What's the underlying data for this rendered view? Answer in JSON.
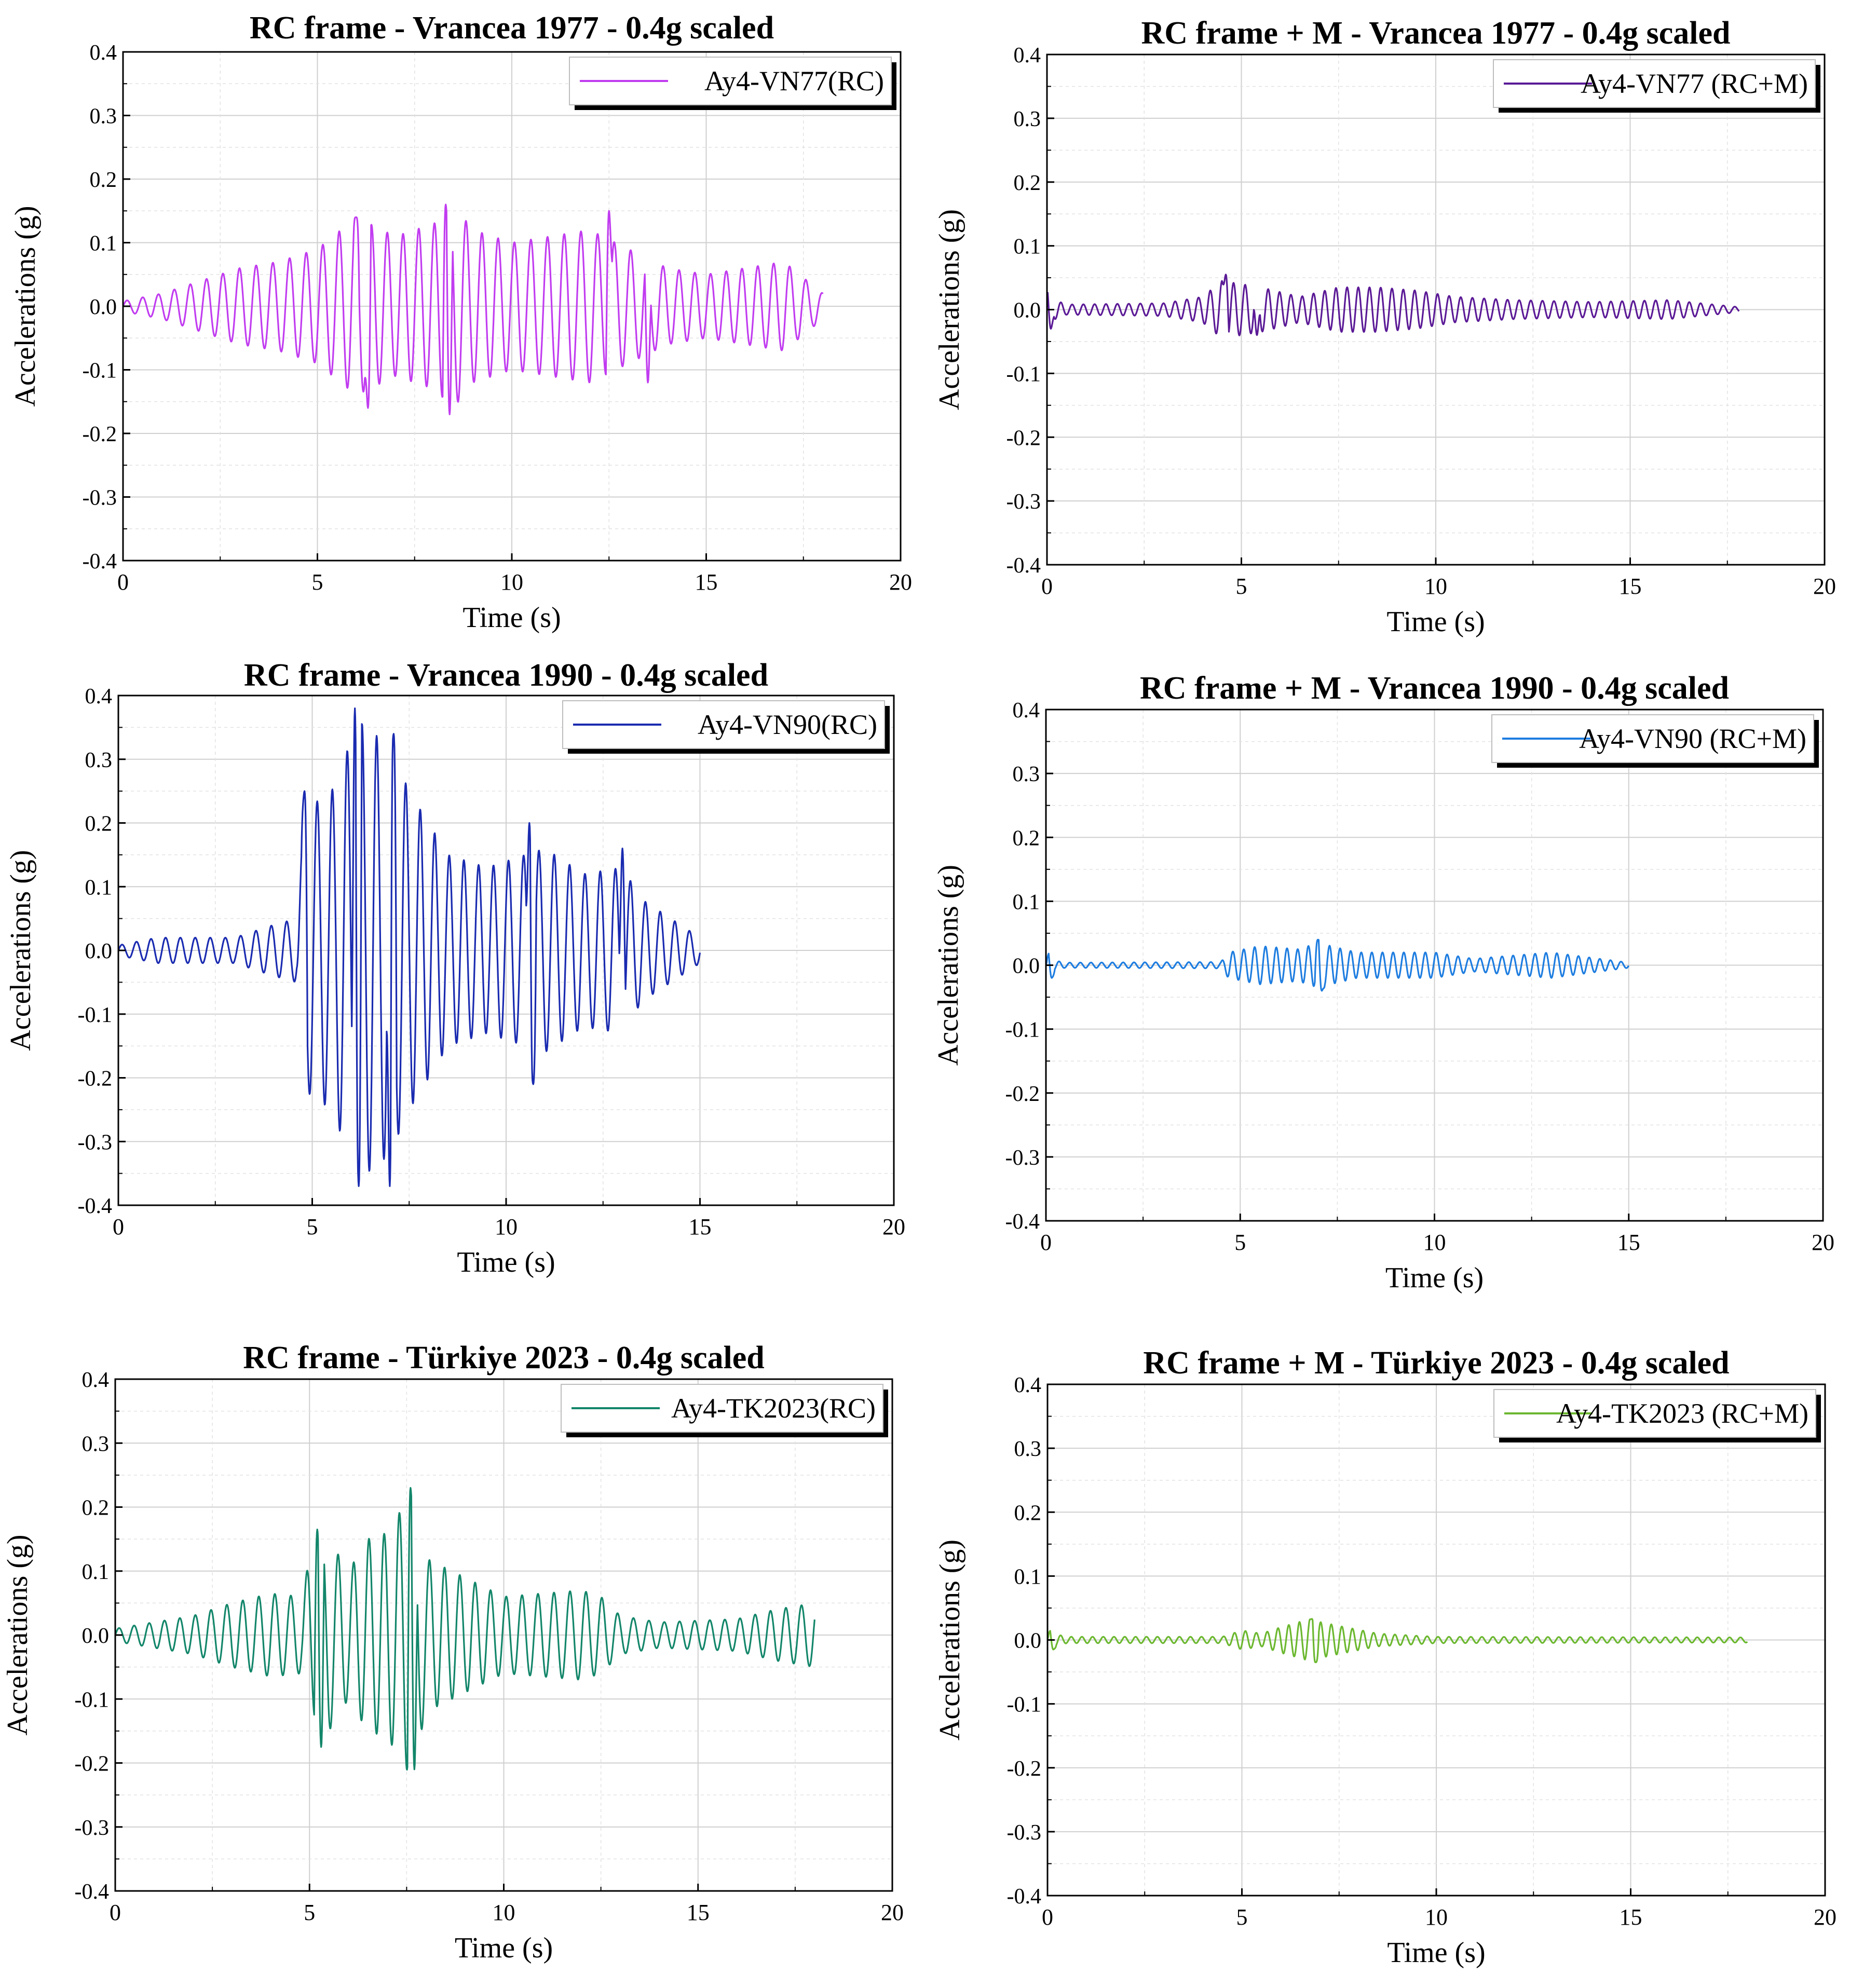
{
  "figure": {
    "charts": [
      {
        "id": "p1",
        "title": "RC frame - Vrancea 1977 - 0.4g scaled",
        "legend": "Ay4-VN77(RC)",
        "color": "#c13cf0"
      },
      {
        "id": "p2",
        "title": "RC frame + M - Vrancea 1977 - 0.4g scaled",
        "legend": "Ay4-VN77 (RC+M)",
        "color": "#5b1a96"
      },
      {
        "id": "p3",
        "title": "RC frame - Vrancea 1990 - 0.4g scaled",
        "legend": "Ay4-VN90(RC)",
        "color": "#1a2bb0"
      },
      {
        "id": "p4",
        "title": "RC frame + M - Vrancea 1990 - 0.4g scaled",
        "legend": "Ay4-VN90 (RC+M)",
        "color": "#1e7de0"
      },
      {
        "id": "p5",
        "title": "RC frame - Türkiye 2023 - 0.4g scaled",
        "legend": "Ay4-TK2023(RC)",
        "color": "#13866a"
      },
      {
        "id": "p6",
        "title": "RC frame + M - Türkiye 2023 - 0.4g scaled",
        "legend": "Ay4-TK2023 (RC+M)",
        "color": "#6cb830"
      }
    ]
  },
  "chart_data": [
    {
      "type": "line",
      "title": "RC frame - Vrancea 1977 - 0.4g scaled",
      "xlabel": "Time (s)",
      "ylabel": "Accelerations (g)",
      "xlim": [
        0,
        20
      ],
      "ylim": [
        -0.4,
        0.4
      ],
      "xticks": [
        "0",
        "5",
        "10",
        "15",
        "20"
      ],
      "yticks": [
        "-0.4",
        "-0.3",
        "-0.2",
        "-0.1",
        "0.0",
        "0.1",
        "0.2",
        "0.3",
        "0.4"
      ],
      "grid": true,
      "legend_position": "top-right",
      "series": [
        {
          "name": "Ay4-VN77(RC)",
          "color": "#c13cf0",
          "signal": {
            "duration": 18.0,
            "freq": 2.4,
            "envelope": [
              [
                0,
                0.008
              ],
              [
                1,
                0.02
              ],
              [
                2,
                0.04
              ],
              [
                3,
                0.06
              ],
              [
                4,
                0.07
              ],
              [
                5,
                0.09
              ],
              [
                6,
                0.14
              ],
              [
                7,
                0.11
              ],
              [
                8,
                0.13
              ],
              [
                8.5,
                0.16
              ],
              [
                9,
                0.12
              ],
              [
                10,
                0.1
              ],
              [
                11,
                0.11
              ],
              [
                12,
                0.12
              ],
              [
                13,
                0.09
              ],
              [
                14,
                0.06
              ],
              [
                15,
                0.05
              ],
              [
                16,
                0.06
              ],
              [
                17,
                0.07
              ],
              [
                18,
                0.02
              ]
            ],
            "peaks": [
              [
                6.0,
                0.14
              ],
              [
                6.3,
                -0.16
              ],
              [
                8.3,
                0.16
              ],
              [
                8.4,
                -0.17
              ],
              [
                12.5,
                0.15
              ],
              [
                13.5,
                -0.12
              ]
            ]
          }
        }
      ]
    },
    {
      "type": "line",
      "title": "RC frame + M - Vrancea 1977 - 0.4g scaled",
      "xlabel": "Time (s)",
      "ylabel": "Accelerations (g)",
      "xlim": [
        0,
        20
      ],
      "ylim": [
        -0.4,
        0.4
      ],
      "xticks": [
        "0",
        "5",
        "10",
        "15",
        "20"
      ],
      "yticks": [
        "-0.4",
        "-0.3",
        "-0.2",
        "-0.1",
        "0.0",
        "0.1",
        "0.2",
        "0.3",
        "0.4"
      ],
      "grid": true,
      "legend_position": "top-right",
      "series": [
        {
          "name": "Ay4-VN77 (RC+M)",
          "color": "#5b1a96",
          "signal": {
            "duration": 17.8,
            "freq": 3.4,
            "envelope": [
              [
                0,
                0.02
              ],
              [
                0.5,
                0.008
              ],
              [
                3,
                0.01
              ],
              [
                4,
                0.02
              ],
              [
                4.5,
                0.045
              ],
              [
                5.5,
                0.035
              ],
              [
                6.5,
                0.02
              ],
              [
                7.5,
                0.035
              ],
              [
                8.5,
                0.035
              ],
              [
                9.5,
                0.03
              ],
              [
                10.5,
                0.02
              ],
              [
                12,
                0.015
              ],
              [
                14,
                0.012
              ],
              [
                16,
                0.015
              ],
              [
                17.8,
                0.004
              ]
            ],
            "peaks": [
              [
                0.05,
                0.03
              ],
              [
                0.1,
                -0.03
              ],
              [
                4.6,
                0.055
              ],
              [
                5.4,
                -0.04
              ]
            ]
          }
        }
      ]
    },
    {
      "type": "line",
      "title": "RC frame - Vrancea 1990 - 0.4g scaled",
      "xlabel": "Time (s)",
      "ylabel": "Accelerations (g)",
      "xlim": [
        0,
        20
      ],
      "ylim": [
        -0.4,
        0.4
      ],
      "xticks": [
        "0",
        "5",
        "10",
        "15",
        "20"
      ],
      "yticks": [
        "-0.4",
        "-0.3",
        "-0.2",
        "-0.1",
        "0.0",
        "0.1",
        "0.2",
        "0.3",
        "0.4"
      ],
      "grid": true,
      "legend_position": "top-right",
      "series": [
        {
          "name": "Ay4-VN90(RC)",
          "color": "#1a2bb0",
          "signal": {
            "duration": 15.0,
            "freq": 2.6,
            "envelope": [
              [
                0,
                0.008
              ],
              [
                1,
                0.02
              ],
              [
                2,
                0.02
              ],
              [
                3,
                0.02
              ],
              [
                4,
                0.04
              ],
              [
                4.6,
                0.05
              ],
              [
                4.8,
                0.22
              ],
              [
                5.5,
                0.25
              ],
              [
                6.2,
                0.36
              ],
              [
                7,
                0.32
              ],
              [
                7.5,
                0.25
              ],
              [
                8.5,
                0.15
              ],
              [
                9.5,
                0.13
              ],
              [
                10.5,
                0.15
              ],
              [
                11,
                0.16
              ],
              [
                12,
                0.12
              ],
              [
                13,
                0.13
              ],
              [
                13.5,
                0.08
              ],
              [
                14.5,
                0.04
              ],
              [
                15,
                0.02
              ]
            ],
            "peaks": [
              [
                4.8,
                0.25
              ],
              [
                6.1,
                0.38
              ],
              [
                6.2,
                -0.37
              ],
              [
                7.0,
                -0.37
              ],
              [
                7.1,
                0.34
              ],
              [
                10.6,
                0.2
              ],
              [
                10.7,
                -0.21
              ],
              [
                13.0,
                0.16
              ]
            ]
          }
        }
      ]
    },
    {
      "type": "line",
      "title": "RC frame + M - Vrancea 1990 - 0.4g scaled",
      "xlabel": "Time (s)",
      "ylabel": "Accelerations (g)",
      "xlim": [
        0,
        20
      ],
      "ylim": [
        -0.4,
        0.4
      ],
      "xticks": [
        "0",
        "5",
        "10",
        "15",
        "20"
      ],
      "yticks": [
        "-0.4",
        "-0.3",
        "-0.2",
        "-0.1",
        "0.0",
        "0.1",
        "0.2",
        "0.3",
        "0.4"
      ],
      "grid": true,
      "legend_position": "top-right",
      "series": [
        {
          "name": "Ay4-VN90 (RC+M)",
          "color": "#1e7de0",
          "signal": {
            "duration": 15.0,
            "freq": 3.6,
            "envelope": [
              [
                0,
                0.01
              ],
              [
                0.5,
                0.004
              ],
              [
                4.5,
                0.005
              ],
              [
                4.7,
                0.02
              ],
              [
                5.5,
                0.03
              ],
              [
                6.5,
                0.025
              ],
              [
                7,
                0.035
              ],
              [
                8,
                0.02
              ],
              [
                10,
                0.02
              ],
              [
                11,
                0.01
              ],
              [
                12,
                0.015
              ],
              [
                13,
                0.02
              ],
              [
                14,
                0.012
              ],
              [
                15,
                0.004
              ]
            ],
            "peaks": [
              [
                0.1,
                0.02
              ],
              [
                0.15,
                -0.02
              ],
              [
                7.0,
                0.04
              ],
              [
                7.1,
                -0.04
              ]
            ]
          }
        }
      ]
    },
    {
      "type": "line",
      "title": "RC frame - Türkiye 2023 - 0.4g scaled",
      "xlabel": "Time (s)",
      "ylabel": "Accelerations (g)",
      "xlim": [
        0,
        20
      ],
      "ylim": [
        -0.4,
        0.4
      ],
      "xticks": [
        "0",
        "5",
        "10",
        "15",
        "20"
      ],
      "yticks": [
        "-0.4",
        "-0.3",
        "-0.2",
        "-0.1",
        "0.0",
        "0.1",
        "0.2",
        "0.3",
        "0.4"
      ],
      "grid": true,
      "legend_position": "top-right",
      "series": [
        {
          "name": "Ay4-TK2023(RC)",
          "color": "#13866a",
          "signal": {
            "duration": 18.0,
            "freq": 2.5,
            "envelope": [
              [
                0,
                0.01
              ],
              [
                1,
                0.02
              ],
              [
                2,
                0.03
              ],
              [
                3,
                0.05
              ],
              [
                4,
                0.065
              ],
              [
                4.8,
                0.06
              ],
              [
                5,
                0.12
              ],
              [
                5.5,
                0.15
              ],
              [
                6,
                0.1
              ],
              [
                6.5,
                0.15
              ],
              [
                7,
                0.16
              ],
              [
                7.6,
                0.22
              ],
              [
                8,
                0.12
              ],
              [
                9,
                0.09
              ],
              [
                10,
                0.06
              ],
              [
                11,
                0.065
              ],
              [
                12,
                0.07
              ],
              [
                12.5,
                0.06
              ],
              [
                13,
                0.03
              ],
              [
                14,
                0.02
              ],
              [
                16,
                0.025
              ],
              [
                17,
                0.04
              ],
              [
                18,
                0.05
              ]
            ],
            "peaks": [
              [
                5.2,
                0.165
              ],
              [
                5.3,
                -0.175
              ],
              [
                7.6,
                0.23
              ],
              [
                7.7,
                -0.21
              ]
            ]
          }
        }
      ]
    },
    {
      "type": "line",
      "title": "RC frame + M - Türkiye 2023 - 0.4g scaled",
      "xlabel": "Time (s)",
      "ylabel": "Accelerations (g)",
      "xlim": [
        0,
        20
      ],
      "ylim": [
        -0.4,
        0.4
      ],
      "xticks": [
        "0",
        "5",
        "10",
        "15",
        "20"
      ],
      "yticks": [
        "-0.4",
        "-0.3",
        "-0.2",
        "-0.1",
        "0.0",
        "0.1",
        "0.2",
        "0.3",
        "0.4"
      ],
      "grid": true,
      "legend_position": "top-right",
      "series": [
        {
          "name": "Ay4-TK2023 (RC+M)",
          "color": "#6cb830",
          "signal": {
            "duration": 18.0,
            "freq": 3.6,
            "envelope": [
              [
                0,
                0.012
              ],
              [
                0.5,
                0.005
              ],
              [
                4.5,
                0.005
              ],
              [
                5,
                0.015
              ],
              [
                5.5,
                0.01
              ],
              [
                6,
                0.02
              ],
              [
                6.7,
                0.032
              ],
              [
                7.5,
                0.022
              ],
              [
                8.5,
                0.01
              ],
              [
                10,
                0.005
              ],
              [
                18,
                0.004
              ]
            ],
            "peaks": [
              [
                0.1,
                0.015
              ],
              [
                0.15,
                -0.015
              ],
              [
                6.8,
                0.033
              ],
              [
                6.9,
                -0.035
              ]
            ]
          }
        }
      ]
    }
  ]
}
